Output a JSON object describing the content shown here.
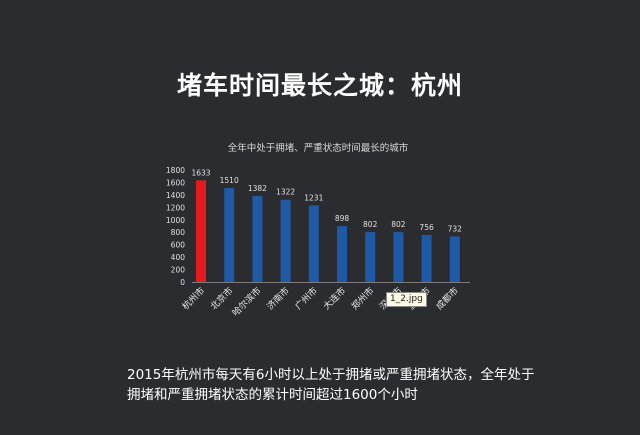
{
  "slide": {
    "title": "堵车时间最长之城：杭州",
    "caption_line1": "2015年杭州市每天有6小时以上处于拥堵或严重拥堵状态，全年处于",
    "caption_line2": "拥堵和严重拥堵状态的累计时间超过1600个小时",
    "tooltip_text": "1_2.jpg"
  },
  "chart_data": {
    "type": "bar",
    "title": "全年中处于拥堵、严重状态时间最长的城市",
    "categories": [
      "杭州市",
      "北京市",
      "哈尔滨市",
      "济南市",
      "广州市",
      "大连市",
      "郑州市",
      "深圳市",
      "重庆市",
      "成都市"
    ],
    "values": [
      1633,
      1510,
      1382,
      1322,
      1231,
      898,
      802,
      802,
      756,
      732
    ],
    "ylim": [
      0,
      1800
    ],
    "yticks": [
      0,
      200,
      400,
      600,
      800,
      1000,
      1200,
      1400,
      1600,
      1800
    ],
    "highlight_color": "#e41a1c",
    "bar_color": "#1f5aa6",
    "highlight_index": 0,
    "grid": false,
    "data_labels": true
  }
}
